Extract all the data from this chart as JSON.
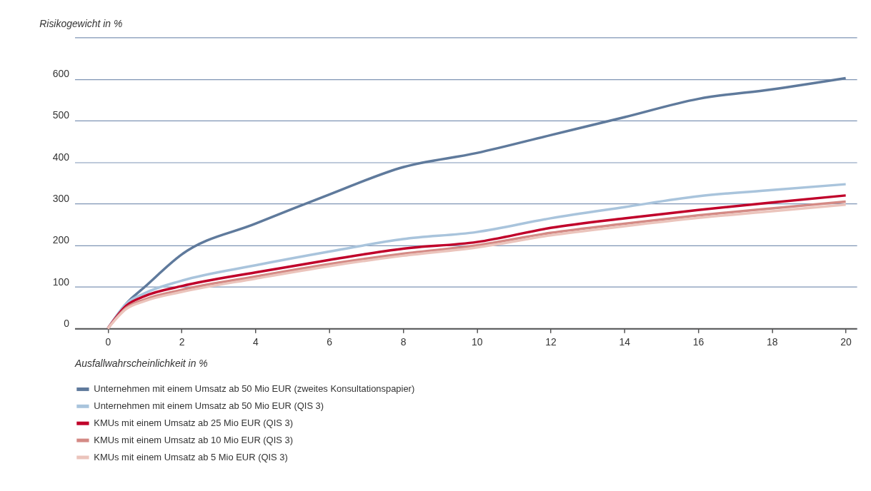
{
  "chart_data": {
    "type": "line",
    "xlabel": "Ausfallwahrscheinlichkeit in %",
    "ylabel": "Risikogewicht in %",
    "x": [
      0,
      0.5,
      1,
      2,
      4,
      6,
      8,
      10,
      12,
      14,
      16,
      18,
      20
    ],
    "series": [
      {
        "name": "Unternehmen mit einem Umsatz ab 50 Mio EUR (zweites Konsultationspapier)",
        "color": "#5f7a9c",
        "values": [
          0,
          60,
          100,
          178,
          252,
          322,
          388,
          422,
          465,
          508,
          552,
          575,
          602
        ]
      },
      {
        "name": "Unternehmen mit einem Umsatz ab 50 Mio EUR (QIS 3)",
        "color": "#a9c4dc",
        "values": [
          0,
          60,
          85,
          115,
          152,
          185,
          215,
          232,
          265,
          292,
          318,
          333,
          347
        ]
      },
      {
        "name": "KMUs mit einem Umsatz ab 25 Mio EUR (QIS 3)",
        "color": "#c0002a",
        "values": [
          0,
          55,
          78,
          102,
          135,
          165,
          192,
          208,
          242,
          265,
          285,
          303,
          320
        ]
      },
      {
        "name": "KMUs mit einem Umsatz ab 10 Mio EUR (QIS 3)",
        "color": "#d48a85",
        "values": [
          0,
          50,
          70,
          93,
          125,
          155,
          180,
          200,
          230,
          252,
          272,
          289,
          305
        ]
      },
      {
        "name": "KMUs mit einem Umsatz ab 5 Mio EUR (QIS 3)",
        "color": "#ebc4bc",
        "values": [
          0,
          47,
          66,
          88,
          120,
          150,
          175,
          195,
          224,
          246,
          266,
          282,
          298
        ]
      }
    ],
    "xlim": [
      -0.9,
      20.3
    ],
    "xticks": [
      0,
      2,
      4,
      6,
      8,
      10,
      12,
      14,
      16,
      18,
      20
    ],
    "ylim": [
      0,
      700
    ],
    "yticks": [
      0,
      100,
      200,
      300,
      400,
      500,
      600,
      {
        "value": 700,
        "label": null
      }
    ],
    "grid": "y",
    "legend": "bottom",
    "marker": "none",
    "line_style": "solid"
  }
}
